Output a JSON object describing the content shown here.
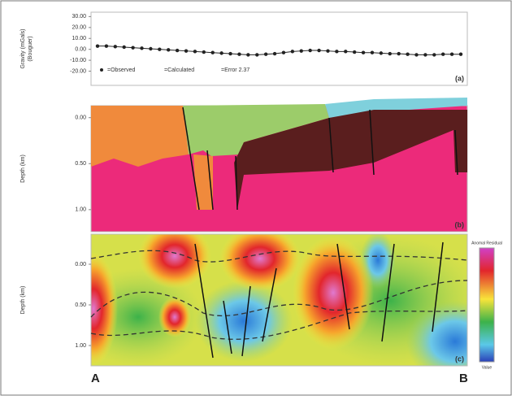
{
  "chart_data": [
    {
      "type": "line",
      "ylabel": [
        "Gravity (mGals)",
        "(Bouguer)"
      ],
      "panel_label": "(a)",
      "values": [
        3,
        3,
        2.5,
        2,
        1.5,
        1,
        0.5,
        0,
        -0.5,
        -1,
        -1.5,
        -2,
        -2.5,
        -3,
        -3.5,
        -4,
        -4.5,
        -5,
        -5,
        -4.5,
        -4,
        -3,
        -2,
        -1.5,
        -1,
        -1,
        -1.5,
        -2,
        -2,
        -2.5,
        -3,
        -3,
        -3.5,
        -4,
        -4,
        -4.5,
        -5,
        -5,
        -5,
        -4.5,
        -4.5,
        -4.5
      ],
      "color": "#222222",
      "ylim": [
        -33,
        34
      ],
      "yticks": [
        {
          "value": 30,
          "label": "30.00"
        },
        {
          "value": 20,
          "label": "20.00"
        },
        {
          "value": 10,
          "label": "10.00"
        },
        {
          "value": 0,
          "label": "0.00"
        },
        {
          "value": -10,
          "label": "-10.00"
        },
        {
          "value": -20,
          "label": "-20.00"
        }
      ],
      "legend": [
        "=Observed",
        "=Calculated",
        "=Error 2.37"
      ]
    },
    {
      "type": "section",
      "ylabel": "Depth (km)",
      "panel_label": "(b)",
      "ylim": [
        -0.13,
        1.24
      ],
      "yticks": [
        {
          "value": 0,
          "label": "0.00"
        },
        {
          "value": 0.5,
          "label": "0.50"
        },
        {
          "value": 1,
          "label": "1.00"
        }
      ]
    },
    {
      "type": "heatmap",
      "ylabel": "Depth (km)",
      "panel_label": "(c)",
      "ylim": [
        -0.37,
        1.25
      ],
      "yticks": [
        {
          "value": 0,
          "label": "0.00"
        },
        {
          "value": 0.5,
          "label": "0.50"
        },
        {
          "value": 1,
          "label": "1.00"
        }
      ],
      "colorbar_top": "Anomal Residual",
      "colorbar_bottom": "Value"
    }
  ],
  "profile": {
    "start": "A",
    "end": "B"
  }
}
